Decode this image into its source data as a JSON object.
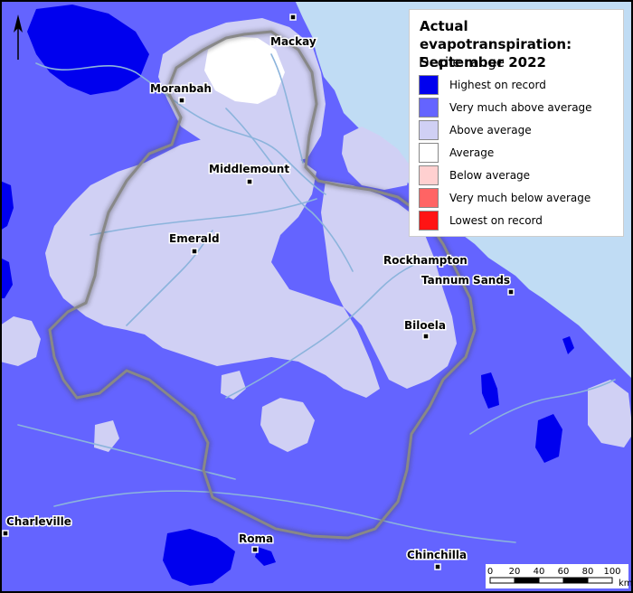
{
  "legend": {
    "title": "Actual evapotranspiration: September 2022",
    "subtitle": "Decile range",
    "items": [
      {
        "label": "Highest on record",
        "color": "#0000ee"
      },
      {
        "label": "Very much above average",
        "color": "#6464ff"
      },
      {
        "label": "Above average",
        "color": "#d0d0f4"
      },
      {
        "label": "Average",
        "color": "#ffffff"
      },
      {
        "label": "Below average",
        "color": "#ffd0d0"
      },
      {
        "label": "Very much below average",
        "color": "#ff6464"
      },
      {
        "label": "Lowest on record",
        "color": "#ff1414"
      }
    ]
  },
  "towns": {
    "mackay": "Mackay",
    "moranbah": "Moranbah",
    "middlemount": "Middlemount",
    "emerald": "Emerald",
    "rockhampton": "Rockhampton",
    "tannum_sands": "Tannum Sands",
    "biloela": "Biloela",
    "charleville": "Charleville",
    "roma": "Roma",
    "chinchilla": "Chinchilla"
  },
  "scale_bar": {
    "ticks": [
      "0",
      "20",
      "40",
      "60",
      "80",
      "100"
    ],
    "unit": "km"
  },
  "colors": {
    "ocean": "#c0dcf4",
    "river": "#8cb4dc",
    "boundary": "#888888"
  }
}
